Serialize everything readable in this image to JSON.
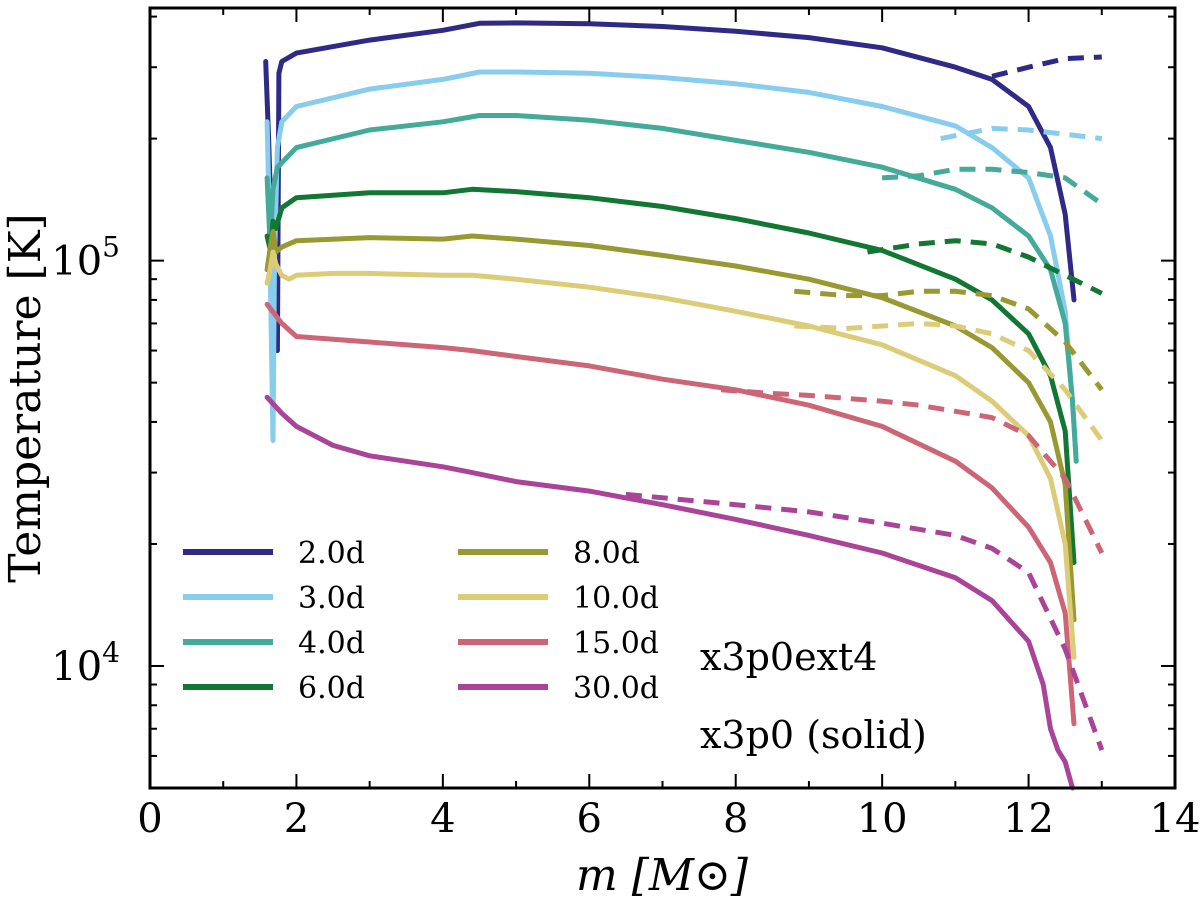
{
  "chart_data": {
    "type": "line",
    "xlabel": "m [M⊙]",
    "ylabel": "Temperature [K]",
    "xlim": [
      0,
      14
    ],
    "ylim": [
      5000,
      420000
    ],
    "yscale": "log",
    "x_ticks": [
      "0",
      "2",
      "4",
      "6",
      "8",
      "10",
      "12",
      "14"
    ],
    "x_tick_values": [
      0,
      2,
      4,
      6,
      8,
      10,
      12,
      14
    ],
    "y_tick_labels": [
      {
        "value": 10000,
        "base": "10",
        "exp": "4"
      },
      {
        "value": 100000,
        "base": "10",
        "exp": "5"
      }
    ],
    "legend_position": "lower-left",
    "annotations": [
      "x3p0ext4",
      "x3p0 (solid)"
    ],
    "series": [
      {
        "name": "2.0d",
        "color": "#2e2a86",
        "solid": [
          [
            1.58,
            310000
          ],
          [
            1.62,
            200000
          ],
          [
            1.66,
            120000
          ],
          [
            1.7,
            90000
          ],
          [
            1.74,
            60000
          ],
          [
            1.76,
            290000
          ],
          [
            1.8,
            310000
          ],
          [
            2.0,
            325000
          ],
          [
            3,
            350000
          ],
          [
            4,
            370000
          ],
          [
            4.5,
            385000
          ],
          [
            5,
            386000
          ],
          [
            6,
            384000
          ],
          [
            7,
            378000
          ],
          [
            8,
            368000
          ],
          [
            9,
            355000
          ],
          [
            10,
            335000
          ],
          [
            11,
            300000
          ],
          [
            11.5,
            280000
          ],
          [
            12,
            240000
          ],
          [
            12.3,
            190000
          ],
          [
            12.5,
            130000
          ],
          [
            12.62,
            80000
          ]
        ],
        "dashed": [
          [
            11.5,
            285000
          ],
          [
            12,
            300000
          ],
          [
            12.5,
            315000
          ],
          [
            13,
            318000
          ]
        ]
      },
      {
        "name": "3.0d",
        "color": "#88ccee",
        "solid": [
          [
            1.6,
            220000
          ],
          [
            1.63,
            130000
          ],
          [
            1.66,
            60000
          ],
          [
            1.68,
            36000
          ],
          [
            1.7,
            100000
          ],
          [
            1.74,
            190000
          ],
          [
            1.8,
            220000
          ],
          [
            2,
            240000
          ],
          [
            3,
            265000
          ],
          [
            4,
            280000
          ],
          [
            4.5,
            292000
          ],
          [
            5,
            292000
          ],
          [
            6,
            290000
          ],
          [
            7,
            283000
          ],
          [
            8,
            273000
          ],
          [
            9,
            260000
          ],
          [
            10,
            240000
          ],
          [
            11,
            215000
          ],
          [
            11.5,
            190000
          ],
          [
            12,
            160000
          ],
          [
            12.3,
            115000
          ],
          [
            12.5,
            75000
          ],
          [
            12.6,
            45000
          ],
          [
            12.65,
            32000
          ]
        ],
        "dashed": [
          [
            10.8,
            200000
          ],
          [
            11.5,
            212000
          ],
          [
            12,
            210000
          ],
          [
            12.5,
            205000
          ],
          [
            13,
            200000
          ]
        ]
      },
      {
        "name": "4.0d",
        "color": "#44aa99",
        "solid": [
          [
            1.6,
            160000
          ],
          [
            1.64,
            110000
          ],
          [
            1.68,
            150000
          ],
          [
            1.74,
            170000
          ],
          [
            2,
            190000
          ],
          [
            3,
            210000
          ],
          [
            4,
            220000
          ],
          [
            4.5,
            228000
          ],
          [
            5,
            228000
          ],
          [
            6,
            222000
          ],
          [
            7,
            212000
          ],
          [
            8,
            198000
          ],
          [
            9,
            185000
          ],
          [
            10,
            170000
          ],
          [
            11,
            150000
          ],
          [
            11.5,
            135000
          ],
          [
            12,
            115000
          ],
          [
            12.3,
            95000
          ],
          [
            12.5,
            70000
          ],
          [
            12.6,
            45000
          ],
          [
            12.65,
            32000
          ]
        ],
        "dashed": [
          [
            10,
            160000
          ],
          [
            10.5,
            162000
          ],
          [
            11,
            168000
          ],
          [
            11.5,
            168000
          ],
          [
            12,
            165000
          ],
          [
            12.5,
            160000
          ],
          [
            13,
            138000
          ]
        ]
      },
      {
        "name": "6.0d",
        "color": "#117733",
        "solid": [
          [
            1.6,
            115000
          ],
          [
            1.65,
            105000
          ],
          [
            1.68,
            125000
          ],
          [
            1.72,
            120000
          ],
          [
            1.8,
            135000
          ],
          [
            2,
            143000
          ],
          [
            3,
            147000
          ],
          [
            4,
            147000
          ],
          [
            4.4,
            150000
          ],
          [
            5,
            148000
          ],
          [
            6,
            143000
          ],
          [
            7,
            136000
          ],
          [
            8,
            127000
          ],
          [
            9,
            117000
          ],
          [
            10,
            106000
          ],
          [
            11,
            90000
          ],
          [
            11.5,
            80000
          ],
          [
            12,
            66000
          ],
          [
            12.3,
            52000
          ],
          [
            12.5,
            38000
          ],
          [
            12.62,
            18000
          ]
        ],
        "dashed": [
          [
            9.8,
            105000
          ],
          [
            10.5,
            110000
          ],
          [
            11,
            112000
          ],
          [
            11.5,
            110000
          ],
          [
            12,
            102000
          ],
          [
            12.5,
            92000
          ],
          [
            13,
            83000
          ]
        ]
      },
      {
        "name": "8.0d",
        "color": "#999933",
        "solid": [
          [
            1.6,
            95000
          ],
          [
            1.65,
            110000
          ],
          [
            1.68,
            118000
          ],
          [
            1.72,
            105000
          ],
          [
            1.8,
            108000
          ],
          [
            2,
            112000
          ],
          [
            3,
            114000
          ],
          [
            4,
            113000
          ],
          [
            4.4,
            115000
          ],
          [
            5,
            113000
          ],
          [
            6,
            109000
          ],
          [
            7,
            103000
          ],
          [
            8,
            97000
          ],
          [
            9,
            90000
          ],
          [
            10,
            81000
          ],
          [
            11,
            69000
          ],
          [
            11.5,
            61000
          ],
          [
            12,
            50000
          ],
          [
            12.3,
            40000
          ],
          [
            12.5,
            28000
          ],
          [
            12.62,
            13000
          ]
        ],
        "dashed": [
          [
            8.8,
            84000
          ],
          [
            9.5,
            82000
          ],
          [
            10,
            82000
          ],
          [
            10.5,
            84000
          ],
          [
            11,
            84000
          ],
          [
            11.5,
            82000
          ],
          [
            12,
            76000
          ],
          [
            12.5,
            63000
          ],
          [
            13,
            48000
          ]
        ]
      },
      {
        "name": "10.0d",
        "color": "#ddcc77",
        "solid": [
          [
            1.6,
            88000
          ],
          [
            1.64,
            95000
          ],
          [
            1.68,
            105000
          ],
          [
            1.72,
            98000
          ],
          [
            1.8,
            92000
          ],
          [
            1.9,
            90000
          ],
          [
            2,
            92000
          ],
          [
            2.5,
            93000
          ],
          [
            3,
            93000
          ],
          [
            4,
            92000
          ],
          [
            4.4,
            92000
          ],
          [
            5,
            90000
          ],
          [
            6,
            86000
          ],
          [
            7,
            81000
          ],
          [
            8,
            75000
          ],
          [
            9,
            69000
          ],
          [
            10,
            62000
          ],
          [
            11,
            52000
          ],
          [
            11.5,
            45000
          ],
          [
            12,
            37000
          ],
          [
            12.3,
            29000
          ],
          [
            12.5,
            20000
          ],
          [
            12.62,
            10500
          ]
        ],
        "dashed": [
          [
            8.8,
            69000
          ],
          [
            9.5,
            68000
          ],
          [
            10,
            69000
          ],
          [
            10.5,
            70000
          ],
          [
            11,
            69000
          ],
          [
            11.5,
            66000
          ],
          [
            12,
            60000
          ],
          [
            12.5,
            48000
          ],
          [
            13,
            36000
          ]
        ]
      },
      {
        "name": "15.0d",
        "color": "#cc6677",
        "solid": [
          [
            1.6,
            78000
          ],
          [
            1.8,
            70000
          ],
          [
            2,
            65000
          ],
          [
            3,
            63000
          ],
          [
            4,
            61000
          ],
          [
            4.4,
            60000
          ],
          [
            5,
            58000
          ],
          [
            6,
            55000
          ],
          [
            7,
            51000
          ],
          [
            8,
            48000
          ],
          [
            9,
            44000
          ],
          [
            10,
            39000
          ],
          [
            11,
            32000
          ],
          [
            11.5,
            27500
          ],
          [
            12,
            22000
          ],
          [
            12.3,
            18000
          ],
          [
            12.5,
            13500
          ],
          [
            12.62,
            7200
          ]
        ],
        "dashed": [
          [
            7.8,
            48000
          ],
          [
            8.5,
            47000
          ],
          [
            9,
            46500
          ],
          [
            10,
            45000
          ],
          [
            10.5,
            44000
          ],
          [
            11,
            42500
          ],
          [
            11.5,
            41000
          ],
          [
            12,
            37000
          ],
          [
            12.5,
            29000
          ],
          [
            13,
            19000
          ]
        ]
      },
      {
        "name": "30.0d",
        "color": "#aa4499",
        "solid": [
          [
            1.6,
            46000
          ],
          [
            1.8,
            42000
          ],
          [
            2,
            39000
          ],
          [
            2.5,
            35000
          ],
          [
            3,
            33000
          ],
          [
            4,
            31000
          ],
          [
            4.4,
            30000
          ],
          [
            5,
            28500
          ],
          [
            6,
            27000
          ],
          [
            7,
            25000
          ],
          [
            8,
            23000
          ],
          [
            9,
            21000
          ],
          [
            10,
            19000
          ],
          [
            11,
            16500
          ],
          [
            11.5,
            14500
          ],
          [
            12,
            11500
          ],
          [
            12.2,
            9000
          ],
          [
            12.3,
            7000
          ],
          [
            12.4,
            6200
          ],
          [
            12.5,
            5800
          ],
          [
            12.6,
            5000
          ]
        ],
        "dashed": [
          [
            6.5,
            26500
          ],
          [
            7,
            26000
          ],
          [
            8,
            25000
          ],
          [
            9,
            24000
          ],
          [
            10,
            22500
          ],
          [
            11,
            21000
          ],
          [
            11.5,
            19500
          ],
          [
            12,
            17000
          ],
          [
            12.5,
            11000
          ],
          [
            13,
            6200
          ]
        ]
      }
    ]
  }
}
